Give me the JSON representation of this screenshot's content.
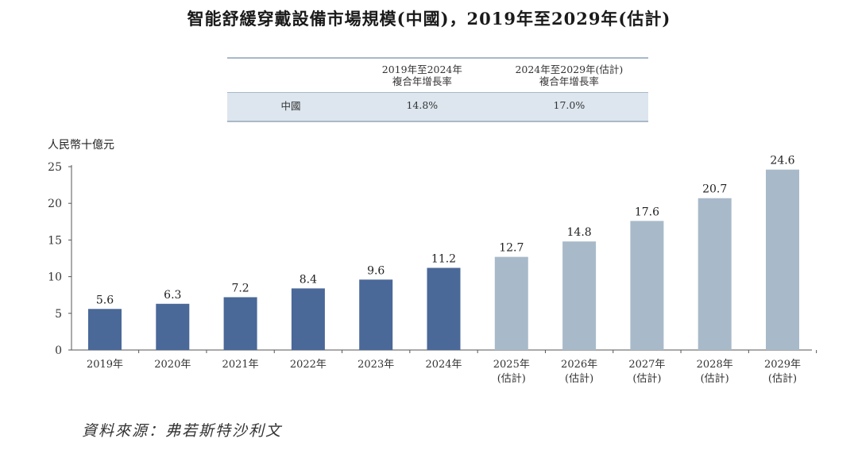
{
  "title": "智能舒緩穿戴設備市場規模(中國)，2019年至2029年(估計)",
  "cagr_table": {
    "header": {
      "col1_line1": "2019年至2024年",
      "col1_line2": "複合年增長率",
      "col2_line1": "2024年至2029年(估計)",
      "col2_line2": "複合年增長率"
    },
    "row": {
      "label": "中國",
      "col1": "14.8%",
      "col2": "17.0%"
    }
  },
  "chart_data": {
    "type": "bar",
    "ylabel": "人民幣十億元",
    "ylim": [
      0,
      25
    ],
    "yticks": [
      0,
      5,
      10,
      15,
      20,
      25
    ],
    "categories": [
      [
        "2019年"
      ],
      [
        "2020年"
      ],
      [
        "2021年"
      ],
      [
        "2022年"
      ],
      [
        "2023年"
      ],
      [
        "2024年"
      ],
      [
        "2025年",
        "(估計)"
      ],
      [
        "2026年",
        "(估計)"
      ],
      [
        "2027年",
        "(估計)"
      ],
      [
        "2028年",
        "(估計)"
      ],
      [
        "2029年",
        "(估計)"
      ]
    ],
    "values": [
      5.6,
      6.3,
      7.2,
      8.4,
      9.6,
      11.2,
      12.7,
      14.8,
      17.6,
      20.7,
      24.6
    ],
    "value_labels": [
      "5.6",
      "6.3",
      "7.2",
      "8.4",
      "9.6",
      "11.2",
      "12.7",
      "14.8",
      "17.6",
      "20.7",
      "24.6"
    ],
    "colors": {
      "historical": "#4a6898",
      "estimated": "#a8bac9",
      "axis": "#555555"
    },
    "estimated_from_index": 6
  },
  "source": "資料來源：弗若斯特沙利文"
}
